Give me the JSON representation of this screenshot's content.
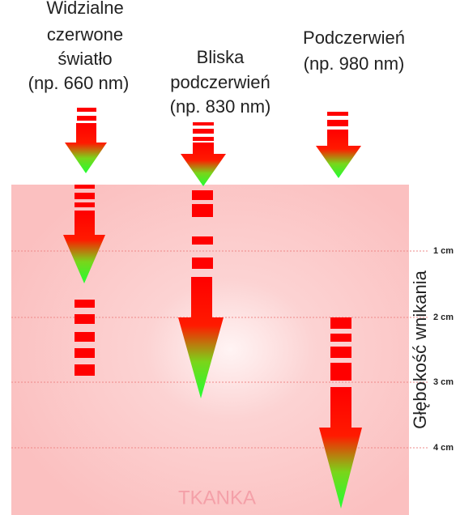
{
  "columns": [
    {
      "title_lines": [
        "Widzialne",
        "czerwone",
        "światło",
        "(np. 660 nm)"
      ]
    },
    {
      "title_lines": [
        "Bliska",
        "podczerwień",
        "(np.  830 nm)"
      ]
    },
    {
      "title_lines": [
        "Podczerwień",
        "(np.  980 nm)"
      ]
    }
  ],
  "tissue_label": "TKANKA",
  "depth_axis": {
    "label": "Głębokość wnikania",
    "ticks": [
      "1 cm",
      "2 cm",
      "3 cm",
      "4 cm"
    ]
  }
}
